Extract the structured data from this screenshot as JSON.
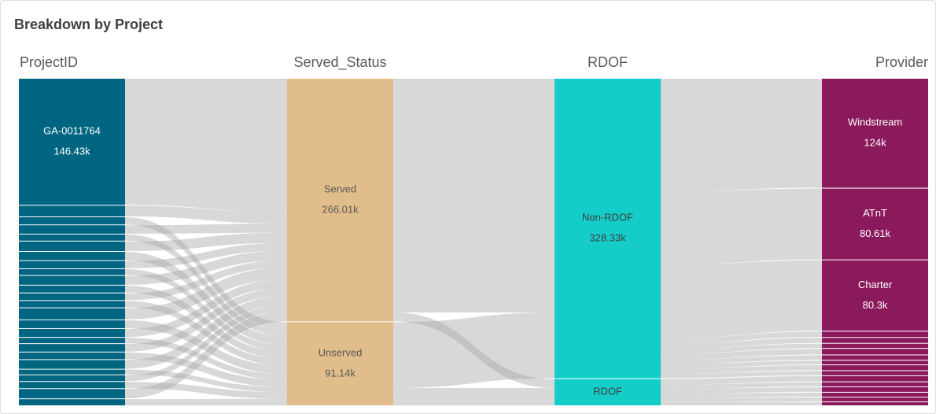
{
  "chart_data": {
    "type": "sankey",
    "title": "Breakdown by Project",
    "columns": [
      {
        "name": "ProjectID",
        "color": "#006580",
        "label_color": "#ffffff",
        "nodes": [
          {
            "label": "GA-0011764",
            "value": 146.43,
            "value_label": "146.43k"
          },
          {
            "value": 12.5
          },
          {
            "value": 8.4
          },
          {
            "value": 9.8
          },
          {
            "value": 7.2
          },
          {
            "value": 11.2
          },
          {
            "value": 9.6
          },
          {
            "value": 8.6
          },
          {
            "value": 6.8
          },
          {
            "value": 10.4
          },
          {
            "value": 8.1
          },
          {
            "value": 7.9
          },
          {
            "value": 7.5
          },
          {
            "value": 13.1
          },
          {
            "value": 9.2
          },
          {
            "value": 9.3
          },
          {
            "value": 6.4
          },
          {
            "value": 8.8
          },
          {
            "value": 7.9
          },
          {
            "value": 10.2
          },
          {
            "value": 5.6
          },
          {
            "value": 6.9
          },
          {
            "value": 7.3
          },
          {
            "value": 10.88
          },
          {
            "value": 7.14
          }
        ],
        "links": [
          {
            "source": 0,
            "target": 0,
            "value": 146.43
          },
          {
            "source": 1,
            "target": 0,
            "value": 12.5
          },
          {
            "source": 2,
            "target": 1,
            "value": 8.4
          },
          {
            "source": 3,
            "target": 0,
            "value": 9.8
          },
          {
            "source": 4,
            "target": 1,
            "value": 7.2
          },
          {
            "source": 5,
            "target": 0,
            "value": 11.2
          },
          {
            "source": 6,
            "target": 1,
            "value": 9.6
          },
          {
            "source": 7,
            "target": 0,
            "value": 8.6
          },
          {
            "source": 8,
            "target": 1,
            "value": 6.8
          },
          {
            "source": 9,
            "target": 0,
            "value": 10.4
          },
          {
            "source": 10,
            "target": 1,
            "value": 8.1
          },
          {
            "source": 11,
            "target": 0,
            "value": 7.9
          },
          {
            "source": 12,
            "target": 1,
            "value": 7.5
          },
          {
            "source": 13,
            "target": 0,
            "value": 13.1
          },
          {
            "source": 14,
            "target": 1,
            "value": 9.2
          },
          {
            "source": 15,
            "target": 0,
            "value": 9.3
          },
          {
            "source": 16,
            "target": 1,
            "value": 6.4
          },
          {
            "source": 17,
            "target": 0,
            "value": 8.8
          },
          {
            "source": 18,
            "target": 1,
            "value": 7.9
          },
          {
            "source": 19,
            "target": 0,
            "value": 10.2
          },
          {
            "source": 20,
            "target": 1,
            "value": 5.6
          },
          {
            "source": 21,
            "target": 0,
            "value": 6.9
          },
          {
            "source": 22,
            "target": 1,
            "value": 7.3
          },
          {
            "source": 23,
            "target": 0,
            "value": 10.88
          },
          {
            "source": 24,
            "target": 1,
            "value": 7.14
          }
        ]
      },
      {
        "name": "Served_Status",
        "color": "#e0bd8a",
        "label_color": "#595959",
        "nodes": [
          {
            "label": "Served",
            "value": 266.01,
            "value_label": "266.01k"
          },
          {
            "label": "Unserved",
            "value": 91.14,
            "value_label": "91.14k"
          }
        ],
        "links": [
          {
            "source": 0,
            "target": 0,
            "value": 256.2
          },
          {
            "source": 0,
            "target": 1,
            "value": 9.81
          },
          {
            "source": 1,
            "target": 0,
            "value": 72.13
          },
          {
            "source": 1,
            "target": 1,
            "value": 19.01
          }
        ]
      },
      {
        "name": "RDOF",
        "color": "#14cdc8",
        "label_color": "#404040",
        "nodes": [
          {
            "label": "Non-RDOF",
            "value": 328.33,
            "value_label": "328.33k"
          },
          {
            "label": "RDOF",
            "value": 28.82
          }
        ],
        "links": [
          {
            "source": 0,
            "target": 0,
            "value": 124
          },
          {
            "source": 0,
            "target": 1,
            "value": 80.61
          },
          {
            "source": 0,
            "target": 2,
            "value": 80.3
          },
          {
            "source": 0,
            "target": 3,
            "value": 6.2
          },
          {
            "source": 0,
            "target": 4,
            "value": 5.8
          },
          {
            "source": 0,
            "target": 5,
            "value": 4.9
          },
          {
            "source": 0,
            "target": 6,
            "value": 6.5
          },
          {
            "source": 0,
            "target": 7,
            "value": 5.1
          },
          {
            "source": 0,
            "target": 8,
            "value": 4.4
          },
          {
            "source": 0,
            "target": 9,
            "value": 5.7
          },
          {
            "source": 0,
            "target": 10,
            "value": 4.82
          },
          {
            "source": 1,
            "target": 11,
            "value": 6.1
          },
          {
            "source": 1,
            "target": 12,
            "value": 4.8
          },
          {
            "source": 1,
            "target": 13,
            "value": 5.3
          },
          {
            "source": 1,
            "target": 14,
            "value": 4.6
          },
          {
            "source": 1,
            "target": 15,
            "value": 4.5
          },
          {
            "source": 1,
            "target": 16,
            "value": 3.52
          }
        ]
      },
      {
        "name": "Provider",
        "color": "#8b1a5c",
        "label_color": "#ffffff",
        "nodes": [
          {
            "label": "Windstream",
            "value": 124,
            "value_label": "124k"
          },
          {
            "label": "ATnT",
            "value": 80.61,
            "value_label": "80.61k"
          },
          {
            "label": "Charter",
            "value": 80.3,
            "value_label": "80.3k"
          },
          {
            "value": 6.2
          },
          {
            "value": 5.8
          },
          {
            "value": 4.9
          },
          {
            "value": 6.5
          },
          {
            "value": 5.1
          },
          {
            "value": 4.4
          },
          {
            "value": 5.7
          },
          {
            "value": 4.82
          },
          {
            "value": 6.1
          },
          {
            "value": 4.8
          },
          {
            "value": 5.3
          },
          {
            "value": 4.6
          },
          {
            "value": 4.5
          },
          {
            "value": 3.52
          }
        ]
      }
    ]
  }
}
